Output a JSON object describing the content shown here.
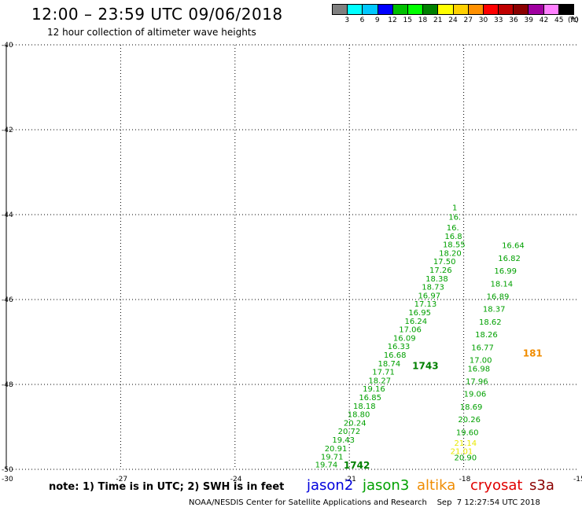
{
  "title": "12:00 – 23:59 UTC 09/06/2018",
  "subtitle": "12 hour collection of altimeter wave heights",
  "legend": {
    "colors": [
      "#808080",
      "#00ffff",
      "#00c8ff",
      "#0000ff",
      "#00c000",
      "#00ff00",
      "#008000",
      "#ffff00",
      "#ffd000",
      "#ff9000",
      "#ff0000",
      "#c00000",
      "#8b0000",
      "#a000a0",
      "#ff80ff",
      "#000000"
    ],
    "labels": [
      "3",
      "6",
      "9",
      "12",
      "15",
      "18",
      "21",
      "24",
      "27",
      "30",
      "33",
      "36",
      "39",
      "42",
      "45",
      "70"
    ],
    "unit": "(ft)"
  },
  "axes": {
    "lat_labels": [
      "-40",
      "-42",
      "-44",
      "-46",
      "-48",
      "-50"
    ],
    "lon_labels": [
      "-30",
      "-27",
      "-24",
      "-21",
      "-18",
      "-15"
    ]
  },
  "tracks": [
    {
      "satellite": "jason3",
      "color": "#00a000",
      "points": [
        {
          "v": "19.74",
          "lon": -21.9,
          "lat": -49.95
        },
        {
          "v": "19.71",
          "lon": -21.75,
          "lat": -49.77
        },
        {
          "v": "20.91",
          "lon": -21.65,
          "lat": -49.57
        },
        {
          "v": "19.43",
          "lon": -21.45,
          "lat": -49.37
        },
        {
          "v": "20.72",
          "lon": -21.3,
          "lat": -49.17
        },
        {
          "v": "20.24",
          "lon": -21.15,
          "lat": -48.97
        },
        {
          "v": "18.80",
          "lon": -21.05,
          "lat": -48.77
        },
        {
          "v": "18.18",
          "lon": -20.9,
          "lat": -48.57
        },
        {
          "v": "16.85",
          "lon": -20.75,
          "lat": -48.37
        },
        {
          "v": "19.16",
          "lon": -20.65,
          "lat": -48.17
        },
        {
          "v": "18.27",
          "lon": -20.5,
          "lat": -47.97
        },
        {
          "v": "17.71",
          "lon": -20.4,
          "lat": -47.77
        },
        {
          "v": "18.74",
          "lon": -20.25,
          "lat": -47.57
        },
        {
          "v": "16.68",
          "lon": -20.1,
          "lat": -47.37
        },
        {
          "v": "16.33",
          "lon": -20.0,
          "lat": -47.17
        },
        {
          "v": "16.09",
          "lon": -19.85,
          "lat": -46.97
        },
        {
          "v": "17.06",
          "lon": -19.7,
          "lat": -46.77
        },
        {
          "v": "16.24",
          "lon": -19.55,
          "lat": -46.57
        },
        {
          "v": "16.95",
          "lon": -19.45,
          "lat": -46.37
        },
        {
          "v": "17.13",
          "lon": -19.3,
          "lat": -46.17
        },
        {
          "v": "16.97",
          "lon": -19.2,
          "lat": -45.97
        },
        {
          "v": "18.73",
          "lon": -19.1,
          "lat": -45.77
        },
        {
          "v": "18.38",
          "lon": -19.0,
          "lat": -45.57
        },
        {
          "v": "17.26",
          "lon": -18.9,
          "lat": -45.37
        },
        {
          "v": "17.50",
          "lon": -18.8,
          "lat": -45.17
        },
        {
          "v": "18.20",
          "lon": -18.65,
          "lat": -44.97
        },
        {
          "v": "18.55",
          "lon": -18.55,
          "lat": -44.77
        },
        {
          "v": "16.8",
          "lon": -18.5,
          "lat": -44.57
        },
        {
          "v": "16.",
          "lon": -18.45,
          "lat": -44.37
        },
        {
          "v": "16.",
          "lon": -18.4,
          "lat": -44.12
        },
        {
          "v": "1",
          "lon": -18.3,
          "lat": -43.9
        }
      ]
    },
    {
      "satellite": "jason3",
      "color": "#00a000",
      "points": [
        {
          "v": "20.90",
          "lon": -18.25,
          "lat": -49.79
        },
        {
          "v": "19.60",
          "lon": -18.2,
          "lat": -49.19
        },
        {
          "v": "20.26",
          "lon": -18.15,
          "lat": -48.89
        },
        {
          "v": "18.69",
          "lon": -18.1,
          "lat": -48.59
        },
        {
          "v": "19.06",
          "lon": -18.0,
          "lat": -48.29
        },
        {
          "v": "17.96",
          "lon": -17.95,
          "lat": -47.99
        },
        {
          "v": "16.98",
          "lon": -17.9,
          "lat": -47.69
        },
        {
          "v": "17.00",
          "lon": -17.85,
          "lat": -47.49
        },
        {
          "v": "16.77",
          "lon": -17.8,
          "lat": -47.19
        },
        {
          "v": "18.26",
          "lon": -17.7,
          "lat": -46.89
        },
        {
          "v": "18.62",
          "lon": -17.6,
          "lat": -46.59
        },
        {
          "v": "18.37",
          "lon": -17.5,
          "lat": -46.29
        },
        {
          "v": "16.89",
          "lon": -17.4,
          "lat": -45.99
        },
        {
          "v": "18.14",
          "lon": -17.3,
          "lat": -45.69
        },
        {
          "v": "16.99",
          "lon": -17.2,
          "lat": -45.39
        },
        {
          "v": "16.82",
          "lon": -17.1,
          "lat": -45.09
        },
        {
          "v": "16.64",
          "lon": -17.0,
          "lat": -44.79
        }
      ]
    },
    {
      "satellite": "altika",
      "color": "#e8e800",
      "points": [
        {
          "v": "21.14",
          "lon": -18.25,
          "lat": -49.44
        },
        {
          "v": "21.01",
          "lon": -18.35,
          "lat": -49.64
        }
      ]
    }
  ],
  "time_labels": [
    {
      "text": "1742",
      "lon": -21.15,
      "lat": -49.98,
      "color": "#008000"
    },
    {
      "text": "1743",
      "lon": -19.35,
      "lat": -47.64,
      "color": "#008000"
    },
    {
      "text": "181",
      "lon": -16.45,
      "lat": -47.34,
      "color": "#f08c00"
    }
  ],
  "note": "note: 1) Time is in UTC; 2) SWH is in feet",
  "satellites": {
    "jason2": "jason2",
    "jason3": "jason3",
    "altika": "altika",
    "cryosat": "cryosat",
    "s3a": "s3a"
  },
  "footer": "NOAA/NESDIS Center for Satellite Applications and Research    Sep  7 12:27:54 UTC 2018"
}
